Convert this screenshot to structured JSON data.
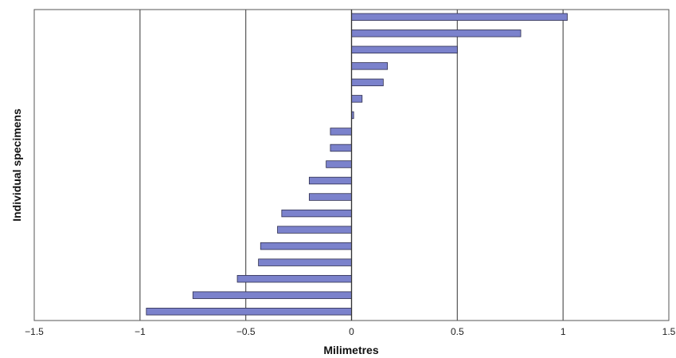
{
  "chart_data": {
    "type": "bar",
    "orientation": "horizontal",
    "xlabel": "Milimetres",
    "ylabel": "Individual specimens",
    "xlim": [
      -1.5,
      1.5
    ],
    "xticks": [
      -1.5,
      -1,
      -0.5,
      0,
      0.5,
      1,
      1.5
    ],
    "xtick_labels": [
      "−1.5",
      "−1",
      "−0.5",
      "0",
      "0.5",
      "1",
      "1.5"
    ],
    "grid": "vertical major gridlines",
    "legend": "none",
    "bar_color": "#7b82cc",
    "bar_edge_color": "#2e2e4e",
    "values": [
      1.02,
      0.8,
      0.5,
      0.17,
      0.15,
      0.05,
      0.01,
      -0.1,
      -0.1,
      -0.12,
      -0.2,
      -0.2,
      -0.33,
      -0.35,
      -0.43,
      -0.44,
      -0.54,
      -0.75,
      -0.97
    ]
  }
}
